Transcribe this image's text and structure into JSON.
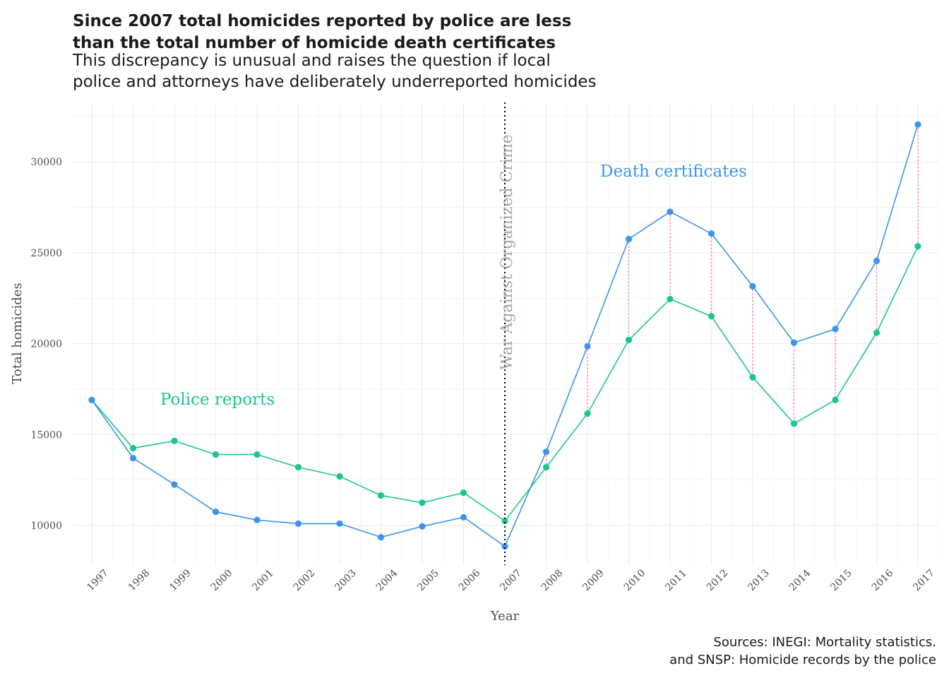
{
  "chart_data": {
    "type": "line",
    "title": "Since 2007 total homicides reported by police are less\n than the total number of homicide death certificates",
    "subtitle": "This discrepancy is unusual and raises the question if local\n police and attorneys have deliberately underreported homicides",
    "caption": "Sources: INEGI: Mortality statistics.\nand SNSP: Homicide records by the police",
    "xlabel": "Year",
    "ylabel": "Total homicides",
    "x": [
      1997,
      1998,
      1999,
      2000,
      2001,
      2002,
      2003,
      2004,
      2005,
      2006,
      2007,
      2008,
      2009,
      2010,
      2011,
      2012,
      2013,
      2014,
      2015,
      2016,
      2017
    ],
    "ylim": [
      7800,
      32600
    ],
    "yticks": [
      10000,
      15000,
      20000,
      25000,
      30000
    ],
    "grid": true,
    "series": [
      {
        "name": "Death certificates",
        "color": "#3d94ea",
        "values": [
          16900,
          13700,
          12250,
          10750,
          10300,
          10100,
          10100,
          9350,
          9950,
          10450,
          8850,
          14050,
          19850,
          25750,
          27250,
          26050,
          23150,
          20050,
          20800,
          24550,
          32050
        ]
      },
      {
        "name": "Police reports",
        "color": "#1cc68b",
        "values": [
          16900,
          14250,
          14650,
          13900,
          13900,
          13200,
          12700,
          11650,
          11250,
          11800,
          10250,
          13200,
          16150,
          20200,
          22450,
          21500,
          18150,
          15600,
          16900,
          20600,
          25350
        ]
      }
    ],
    "difference_segments": {
      "color": "#ff7a9a",
      "from_year": 2008
    },
    "annotations": [
      {
        "text": "War Against Organized Crime",
        "x": 2007,
        "type": "vertical-line",
        "color": "#000000"
      }
    ]
  }
}
